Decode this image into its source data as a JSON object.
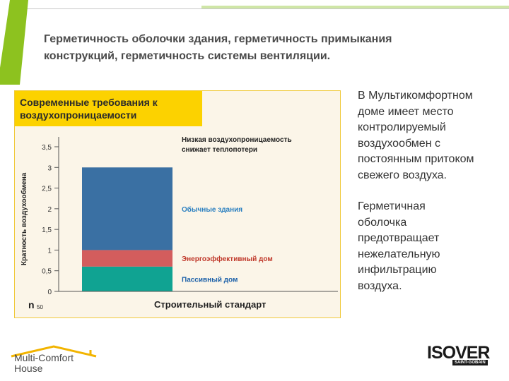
{
  "slide": {
    "title_lines": [
      "Герметичность оболочки здания, герметичность примыкания",
      "конструкций, герметичность системы вентиляции."
    ],
    "accent_color": "#8dc21f",
    "body_lines": [
      "В Мультикомфортном",
      "доме имеет место",
      "контролируемый",
      "воздухообмен с",
      "постоянным притоком",
      "свежего воздуха.",
      "",
      "Герметичная",
      "оболочка",
      "предотвращает",
      "нежелательную",
      "инфильтрацию",
      "воздуха."
    ]
  },
  "chart_header_lines": [
    "Современные требования к",
    " воздухопроницаемости"
  ],
  "chart_data": {
    "type": "bar",
    "stacked": true,
    "categories": [
      "Строительный стандарт"
    ],
    "ylabel": "Кратность воздухообмена",
    "unit_label": "n",
    "unit_subscript": "50",
    "ylim": [
      0,
      3.5
    ],
    "yticks": [
      0,
      0.5,
      1,
      1.5,
      2,
      2.5,
      3,
      3.5
    ],
    "ytick_labels": [
      "0",
      "0,5",
      "1",
      "1,5",
      "2",
      "2,5",
      "3",
      "3,5"
    ],
    "grid": false,
    "segments": [
      {
        "from": 0,
        "to": 0.6,
        "label": "Пассивный дом",
        "color": "#10a392",
        "label_color": "#1a5fa8"
      },
      {
        "from": 0.6,
        "to": 1.0,
        "label": "Энергоэффективный дом",
        "color": "#d35d5d",
        "label_color": "#c0392b"
      },
      {
        "from": 1.0,
        "to": 3.0,
        "label": "Обычные здания",
        "color": "#3a70a3",
        "label_color": "#2a7fc0"
      }
    ],
    "annotation_lines": [
      "Низкая воздухопроницаемость",
      "снижает теплопотери"
    ]
  },
  "logos": {
    "multicomfort": [
      "Multi-Comfort",
      "House"
    ],
    "isover_word": "ISOVER",
    "isover_tag": "SAINT-GOBAIN"
  }
}
